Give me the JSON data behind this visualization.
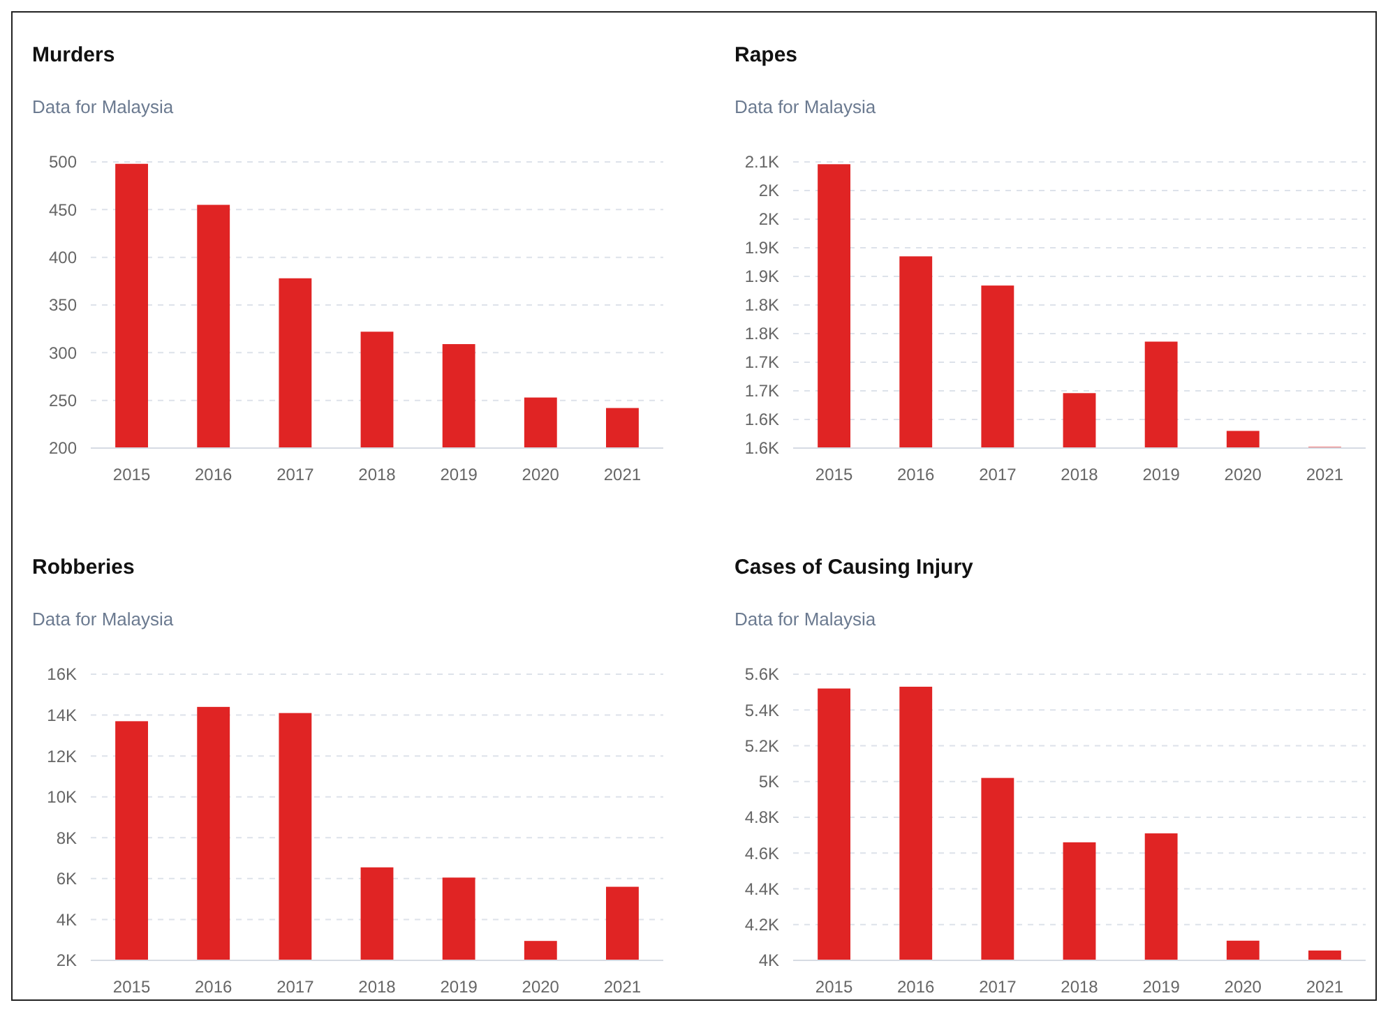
{
  "chart_data": [
    {
      "type": "bar",
      "title": "Murders",
      "subtitle": "Data for Malaysia",
      "categories": [
        "2015",
        "2016",
        "2017",
        "2018",
        "2019",
        "2020",
        "2021"
      ],
      "values": [
        498,
        455,
        378,
        322,
        309,
        253,
        242
      ],
      "color": "#e02424",
      "ylim": [
        200,
        500
      ],
      "yticks": [
        200,
        250,
        300,
        350,
        400,
        450,
        500
      ],
      "grid": "y"
    },
    {
      "type": "bar",
      "title": "Rapes",
      "subtitle": "Data for Malaysia",
      "categories": [
        "2015",
        "2016",
        "2017",
        "2018",
        "2019",
        "2020",
        "2021"
      ],
      "values": [
        2076,
        1915,
        1864,
        1676,
        1766,
        1610,
        1582
      ],
      "color": "#e02424",
      "ylim": [
        1580,
        2080
      ],
      "yticks": [
        {
          "value": 1580,
          "label": "1.6K"
        },
        {
          "value": 1630,
          "label": "1.6K"
        },
        {
          "value": 1680,
          "label": "1.7K"
        },
        {
          "value": 1730,
          "label": "1.7K"
        },
        {
          "value": 1780,
          "label": "1.8K"
        },
        {
          "value": 1830,
          "label": "1.8K"
        },
        {
          "value": 1880,
          "label": "1.9K"
        },
        {
          "value": 1930,
          "label": "1.9K"
        },
        {
          "value": 1980,
          "label": "2K"
        },
        {
          "value": 2030,
          "label": "2K"
        },
        {
          "value": 2080,
          "label": "2.1K"
        }
      ],
      "grid": "y"
    },
    {
      "type": "bar",
      "title": "Robberies",
      "subtitle": "Data for Malaysia",
      "categories": [
        "2015",
        "2016",
        "2017",
        "2018",
        "2019",
        "2020",
        "2021"
      ],
      "values": [
        13700,
        14400,
        14100,
        6550,
        6050,
        2950,
        5600
      ],
      "color": "#e02424",
      "ylim": [
        2000,
        16000
      ],
      "yticks": [
        {
          "value": 2000,
          "label": "2K"
        },
        {
          "value": 4000,
          "label": "4K"
        },
        {
          "value": 6000,
          "label": "6K"
        },
        {
          "value": 8000,
          "label": "8K"
        },
        {
          "value": 10000,
          "label": "10K"
        },
        {
          "value": 12000,
          "label": "12K"
        },
        {
          "value": 14000,
          "label": "14K"
        },
        {
          "value": 16000,
          "label": "16K"
        }
      ],
      "grid": "y"
    },
    {
      "type": "bar",
      "title": "Cases of Causing Injury",
      "subtitle": "Data for Malaysia",
      "categories": [
        "2015",
        "2016",
        "2017",
        "2018",
        "2019",
        "2020",
        "2021"
      ],
      "values": [
        5520,
        5530,
        5020,
        4660,
        4710,
        4110,
        4055
      ],
      "color": "#e02424",
      "ylim": [
        4000,
        5600
      ],
      "yticks": [
        {
          "value": 4000,
          "label": "4K"
        },
        {
          "value": 4200,
          "label": "4.2K"
        },
        {
          "value": 4400,
          "label": "4.4K"
        },
        {
          "value": 4600,
          "label": "4.6K"
        },
        {
          "value": 4800,
          "label": "4.8K"
        },
        {
          "value": 5000,
          "label": "5K"
        },
        {
          "value": 5200,
          "label": "5.2K"
        },
        {
          "value": 5400,
          "label": "5.4K"
        },
        {
          "value": 5600,
          "label": "5.6K"
        }
      ],
      "grid": "y"
    }
  ]
}
